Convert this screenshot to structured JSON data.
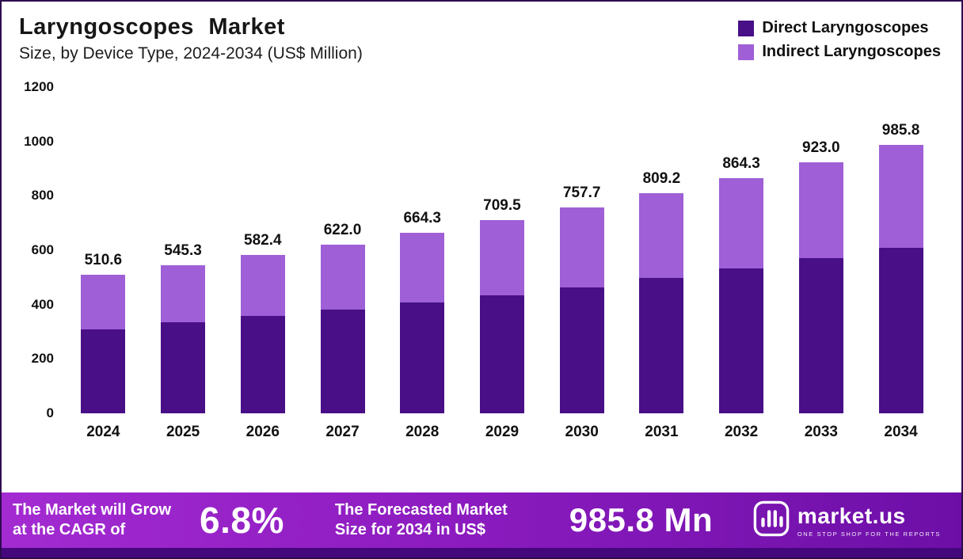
{
  "header": {
    "title": "Laryngoscopes Market",
    "subtitle": "Size, by Device Type, 2024-2034 (US$ Million)"
  },
  "legend": [
    {
      "label": "Direct Laryngoscopes",
      "color": "#480f87"
    },
    {
      "label": "Indirect Laryngoscopes",
      "color": "#9f5fd6"
    }
  ],
  "chart_data": {
    "type": "bar",
    "stacked": true,
    "title": "Laryngoscopes Market Size, by Device Type, 2024-2034 (US$ Million)",
    "categories": [
      "2024",
      "2025",
      "2026",
      "2027",
      "2028",
      "2029",
      "2030",
      "2031",
      "2032",
      "2033",
      "2034"
    ],
    "totals": [
      510.6,
      545.3,
      582.4,
      622.0,
      664.3,
      709.5,
      757.7,
      809.2,
      864.3,
      923.0,
      985.8
    ],
    "totals_display": [
      "510.6",
      "545.3",
      "582.4",
      "622.0",
      "664.3",
      "709.5",
      "757.7",
      "809.2",
      "864.3",
      "923.0",
      "985.8"
    ],
    "series": [
      {
        "name": "Direct Laryngoscopes",
        "color": "#480f87",
        "values": [
          310,
          335,
          358,
          382,
          408,
          434,
          463,
          497,
          532,
          570,
          608
        ]
      },
      {
        "name": "Indirect Laryngoscopes",
        "color": "#9f5fd6",
        "values": [
          200.6,
          210.3,
          224.4,
          240.0,
          256.3,
          275.5,
          294.7,
          312.2,
          332.3,
          353.0,
          377.8
        ]
      }
    ],
    "xlabel": "",
    "ylabel": "",
    "ylim": [
      0,
      1200
    ],
    "yticks": [
      0,
      200,
      400,
      600,
      800,
      1000,
      1200
    ],
    "grid": false,
    "legend_position": "top-right"
  },
  "banner": {
    "cagr_line1": "The Market will Grow",
    "cagr_line2": "at the CAGR of",
    "cagr_value": "6.8%",
    "forecast_line1": "The Forecasted Market",
    "forecast_line2": "Size for 2034 in US$",
    "forecast_value": "985.8 Mn",
    "logo_text": "market.us",
    "logo_tagline": "ONE STOP SHOP FOR THE REPORTS"
  },
  "icons": {
    "logo": "market-us-logo-icon"
  },
  "colors": {
    "banner_gradient_start": "#a32bd1",
    "banner_gradient_end": "#6d0fa7",
    "bottom_strip": "#45087c",
    "text": "#111111",
    "background": "#ffffff"
  }
}
